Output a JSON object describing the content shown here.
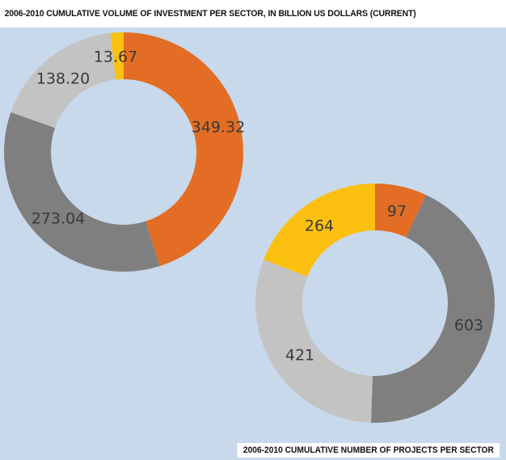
{
  "chart_data": [
    {
      "type": "pie",
      "title": "2006-2010 CUMULATIVE VOLUME OF INVESTMENT PER SECTOR, IN BILLION  US DOLLARS (CURRENT)",
      "slices": [
        {
          "value": 349.32,
          "label": "349.32",
          "color": "#e36d24"
        },
        {
          "value": 273.04,
          "label": "273.04",
          "color": "#7f7f7f"
        },
        {
          "value": 138.2,
          "label": "138.20",
          "color": "#c3c3c3"
        },
        {
          "value": 13.67,
          "label": "13.67",
          "color": "#fcc010"
        }
      ]
    },
    {
      "type": "pie",
      "title": "2006-2010 CUMULATIVE NUMBER OF PROJECTS PER SECTOR",
      "slices": [
        {
          "value": 97,
          "label": "97",
          "color": "#e36d24"
        },
        {
          "value": 603,
          "label": "603",
          "color": "#7f7f7f"
        },
        {
          "value": 421,
          "label": "421",
          "color": "#c3c3c3"
        },
        {
          "value": 264,
          "label": "264",
          "color": "#fcc010"
        }
      ]
    }
  ]
}
